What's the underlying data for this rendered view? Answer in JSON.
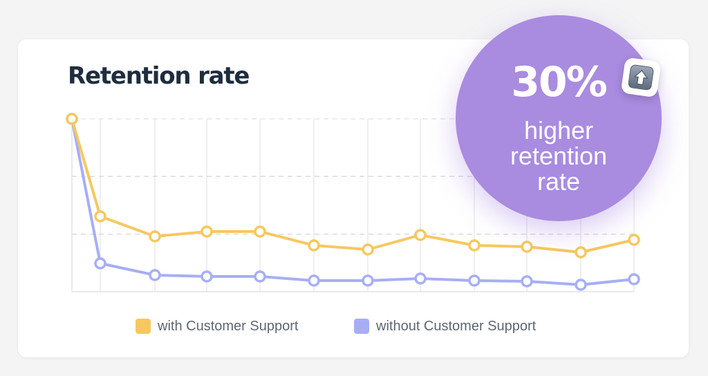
{
  "title": "Retention rate",
  "badge": {
    "percent": "30%",
    "caption_lines": [
      "higher",
      "retention",
      "rate"
    ],
    "icon": "up-arrow-icon",
    "color": "#a98be0"
  },
  "legend": [
    {
      "label": "with Customer Support",
      "color": "#f6c85f"
    },
    {
      "label": "without Customer Support",
      "color": "#a7aef5"
    }
  ],
  "chart_data": {
    "type": "line",
    "title": "Retention rate",
    "xlabel": "",
    "ylabel": "",
    "x": [
      0,
      1,
      2,
      3,
      4,
      5,
      6,
      7,
      8,
      9,
      10,
      11
    ],
    "ylim": [
      0,
      100
    ],
    "grid": true,
    "legend_position": "bottom",
    "series": [
      {
        "name": "with Customer Support",
        "color": "#f6c85f",
        "values": [
          100,
          43.6,
          32,
          34.8,
          34.8,
          26.8,
          24.4,
          32.8,
          26.8,
          26,
          22.8,
          30
        ]
      },
      {
        "name": "without Customer Support",
        "color": "#a7aef5",
        "values": [
          100,
          16.4,
          9.6,
          8.8,
          8.8,
          6.4,
          6.4,
          7.6,
          6.4,
          6,
          4,
          7.2
        ]
      }
    ]
  }
}
